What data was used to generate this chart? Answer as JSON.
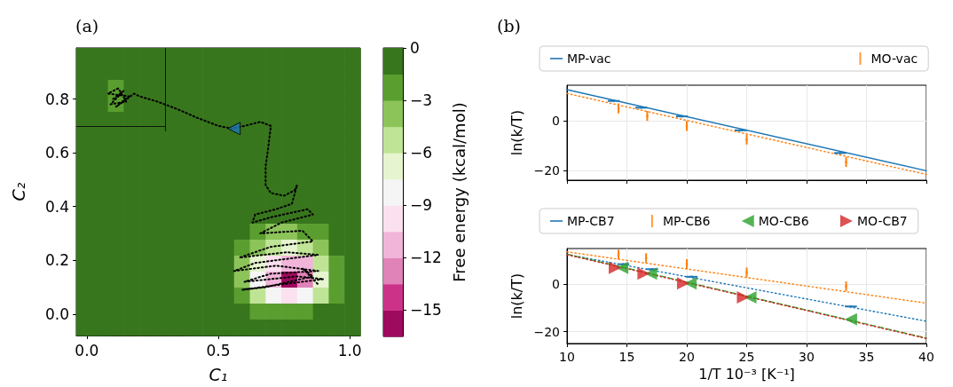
{
  "chart_data": [
    {
      "type": "heatmap",
      "title": "(a)",
      "xlabel": "C₁",
      "ylabel": "C₂",
      "clabel": "Free energy (kcal/mol)",
      "cells": [
        [
          0,
          0,
          0,
          0,
          0,
          0,
          0,
          0,
          0,
          0,
          0,
          0,
          0,
          0,
          0,
          0,
          0,
          0
        ],
        [
          0,
          0,
          0,
          0,
          0,
          0,
          0,
          0,
          0,
          0,
          0,
          0,
          0,
          0,
          0,
          0,
          0,
          0
        ],
        [
          0,
          0,
          -2,
          0,
          0,
          0,
          0,
          0,
          0,
          0,
          0,
          0,
          0,
          0,
          0,
          0,
          0,
          0
        ],
        [
          0,
          0,
          -2,
          0,
          0,
          0,
          0,
          0,
          0,
          0,
          0,
          0,
          0,
          0,
          0,
          0,
          0,
          0
        ],
        [
          0,
          0,
          0,
          0,
          0,
          0,
          0,
          0,
          0,
          0,
          0,
          0,
          0,
          0,
          0,
          0,
          0,
          0
        ],
        [
          0,
          0,
          0,
          0,
          0,
          0,
          0,
          0,
          0,
          0,
          0,
          0,
          0,
          0,
          0,
          0,
          0,
          0
        ],
        [
          0,
          0,
          0,
          0,
          0,
          0,
          0,
          0,
          0,
          0,
          0,
          0,
          0,
          0,
          0,
          0,
          0,
          0
        ],
        [
          0,
          0,
          0,
          0,
          0,
          0,
          0,
          0,
          0,
          0,
          0,
          0,
          0,
          0,
          0,
          0,
          0,
          0
        ],
        [
          0,
          0,
          0,
          0,
          0,
          0,
          0,
          0,
          0,
          0,
          0,
          0,
          0,
          0,
          0,
          0,
          0,
          0
        ],
        [
          0,
          0,
          0,
          0,
          0,
          0,
          0,
          0,
          0,
          0,
          0,
          0,
          0,
          0,
          0,
          0,
          0,
          0
        ],
        [
          0,
          0,
          0,
          0,
          0,
          0,
          0,
          0,
          0,
          0,
          0,
          0,
          0,
          0,
          0,
          0,
          0,
          0
        ],
        [
          0,
          0,
          0,
          0,
          0,
          0,
          0,
          0,
          0,
          0,
          0,
          -2,
          -3.5,
          -3.5,
          -2,
          -2,
          0,
          0
        ],
        [
          0,
          0,
          0,
          0,
          0,
          0,
          0,
          0,
          0,
          0,
          -2,
          -3.5,
          -5,
          -6.5,
          -5,
          -3.5,
          0,
          0
        ],
        [
          0,
          0,
          0,
          0,
          0,
          0,
          0,
          0,
          0,
          0,
          -3.5,
          -6.5,
          -9.5,
          -11,
          -11,
          -5,
          -2,
          0
        ],
        [
          0,
          0,
          0,
          0,
          0,
          0,
          0,
          0,
          0,
          0,
          -3.5,
          -8,
          -11,
          -16,
          -13,
          -6.5,
          -2,
          0
        ],
        [
          0,
          0,
          0,
          0,
          0,
          0,
          0,
          0,
          0,
          0,
          -2,
          -5,
          -8,
          -9.5,
          -8,
          -5,
          -2,
          0
        ],
        [
          0,
          0,
          0,
          0,
          0,
          0,
          0,
          0,
          0,
          0,
          0,
          -2,
          -2,
          -2,
          -2,
          0,
          0,
          0
        ],
        [
          0,
          0,
          0,
          0,
          0,
          0,
          0,
          0,
          0,
          0,
          0,
          0,
          0,
          0,
          0,
          0,
          0,
          0
        ]
      ],
      "colors": [
        "#9e0a5e",
        "#cc3388",
        "#e083b8",
        "#f0b5d9",
        "#fbe0ef",
        "#f5f5f5",
        "#e6f5d0",
        "#c0e496",
        "#8cc45a",
        "#5a9e30",
        "#38761d"
      ],
      "clim": [
        -16.5,
        0
      ],
      "cticks": [
        {
          "value": 0,
          "label": "0"
        },
        {
          "value": -3,
          "label": "−3"
        },
        {
          "value": -6,
          "label": "−6"
        },
        {
          "value": -9,
          "label": "−9"
        },
        {
          "value": -12,
          "label": "−12"
        },
        {
          "value": -15,
          "label": "−15"
        }
      ],
      "xlim": [
        -0.04,
        1.04
      ],
      "xticks": [
        {
          "value": 0,
          "label": "0.0"
        },
        {
          "value": 0.5,
          "label": "0.5"
        },
        {
          "value": 1,
          "label": "1.0"
        }
      ],
      "ylim": [
        -0.08,
        0.99
      ],
      "yticks": [
        {
          "value": 0,
          "label": "0.0"
        },
        {
          "value": 0.2,
          "label": "0.2"
        },
        {
          "value": 0.4,
          "label": "0.4"
        },
        {
          "value": 0.6,
          "label": "0.6"
        },
        {
          "value": 0.8,
          "label": "0.8"
        }
      ],
      "ref_lines": [
        {
          "axis": "x",
          "value": 0.3,
          "color": "#000000"
        },
        {
          "axis": "y",
          "value": 0.7,
          "color": "#000000"
        }
      ],
      "series": [
        {
          "type": "line",
          "color": "#000000",
          "marker": "none",
          "line_style": "dotted",
          "x": [
            0.1,
            0.14,
            0.09,
            0.15,
            0.12,
            0.08,
            0.16,
            0.11,
            0.18,
            0.2,
            0.27,
            0.35,
            0.42,
            0.5,
            0.55,
            0.6,
            0.66,
            0.7,
            0.69,
            0.68,
            0.68,
            0.7,
            0.75,
            0.79,
            0.8,
            0.78,
            0.72,
            0.64,
            0.63,
            0.7,
            0.84,
            0.86,
            0.74,
            0.66,
            0.82,
            0.86,
            0.7,
            0.58,
            0.76,
            0.88,
            0.64,
            0.56,
            0.72,
            0.88,
            0.7,
            0.6,
            0.8,
            0.9,
            0.74,
            0.59,
            0.68,
            0.86,
            0.82,
            0.88
          ],
          "values": [
            0.8,
            0.83,
            0.78,
            0.79,
            0.84,
            0.82,
            0.81,
            0.77,
            0.82,
            0.81,
            0.79,
            0.76,
            0.73,
            0.7,
            0.69,
            0.7,
            0.715,
            0.7,
            0.62,
            0.55,
            0.48,
            0.45,
            0.44,
            0.46,
            0.48,
            0.41,
            0.39,
            0.37,
            0.34,
            0.36,
            0.39,
            0.37,
            0.34,
            0.3,
            0.31,
            0.27,
            0.25,
            0.21,
            0.23,
            0.22,
            0.19,
            0.16,
            0.18,
            0.16,
            0.15,
            0.12,
            0.14,
            0.13,
            0.11,
            0.09,
            0.1,
            0.14,
            0.17,
            0.11
          ]
        },
        {
          "type": "scatter",
          "color": "#1f77b4",
          "marker": "triangle-left",
          "x": [
            0.56
          ],
          "values": [
            0.69
          ]
        }
      ]
    },
    {
      "type": "scatter",
      "title": "(b)",
      "ylabel": "ln(k/T)",
      "legend": "top",
      "grid": true,
      "tick_labels": "y",
      "xlim": [
        10,
        40
      ],
      "xticks": [
        10,
        15,
        20,
        25,
        30,
        35,
        40
      ],
      "ylim": [
        -23.8,
        14.3
      ],
      "yticks": [
        {
          "value": -20,
          "label": "−20"
        },
        0
      ],
      "series": [
        {
          "name": "MP-vac",
          "color": "#1f77b4",
          "marker": "square",
          "x": [
            13.9,
            16.2,
            19.6,
            24.5,
            32.8
          ],
          "values": [
            8,
            5.3,
            1.8,
            -3.8,
            -12.9
          ],
          "xerrors": [
            0.5,
            0.5,
            0.5,
            0.5,
            0.5
          ]
        },
        {
          "name": "MO-vac",
          "color": "#ff7f0e",
          "marker": "square",
          "x": [
            14.3,
            16.7,
            20,
            25,
            33.3
          ],
          "values": [
            5,
            2,
            -2,
            -7.5,
            -16.5
          ],
          "errors": [
            2,
            2,
            2,
            2,
            2
          ]
        },
        {
          "type": "line",
          "color": "#1f77b4",
          "marker": "none",
          "line_style": "solid",
          "x": [
            10,
            40
          ],
          "values": [
            12.5,
            -20
          ]
        },
        {
          "type": "line",
          "color": "#ff7f0e",
          "marker": "none",
          "line_style": "dotted",
          "x": [
            10,
            40
          ],
          "values": [
            11,
            -21.5
          ]
        }
      ]
    },
    {
      "type": "scatter",
      "xlabel": "1/T 10⁻³ [K⁻¹]",
      "ylabel": "ln(k/T)",
      "legend": "top",
      "grid": true,
      "xlim": [
        10,
        40
      ],
      "xticks": [
        10,
        15,
        20,
        25,
        30,
        35,
        40
      ],
      "ylim": [
        -25,
        15
      ],
      "yticks": [
        {
          "value": -20,
          "label": "−20"
        },
        0
      ],
      "series": [
        {
          "name": "MP-CB7",
          "color": "#1f77b4",
          "marker": "square",
          "x": [
            14.7,
            17.1,
            20.4,
            33.7
          ],
          "values": [
            8.4,
            6.3,
            3.1,
            -9.4
          ],
          "xerrors": [
            0.5,
            0.5,
            0.5,
            0.5
          ]
        },
        {
          "name": "MP-CB6",
          "color": "#ff7f0e",
          "marker": "square",
          "x": [
            14.3,
            16.6,
            20,
            25,
            33.3
          ],
          "values": [
            12.5,
            11,
            8.5,
            5,
            -0.9
          ],
          "errors": [
            2,
            2,
            2,
            2,
            2
          ]
        },
        {
          "name": "MO-CB6",
          "color": "#2ca02c",
          "marker": "triangle-left",
          "x": [
            14.6,
            17,
            20.3,
            25.3,
            33.7
          ],
          "values": [
            6.9,
            4.4,
            0.3,
            -5.6,
            -14.8
          ]
        },
        {
          "name": "MO-CB7",
          "color": "#d62728",
          "marker": "triangle-right",
          "x": [
            14,
            16.4,
            19.7,
            24.7
          ],
          "values": [
            6.9,
            4.4,
            0.3,
            -5.6
          ]
        },
        {
          "type": "line",
          "color": "#1f77b4",
          "marker": "none",
          "line_style": "dotted",
          "x": [
            10,
            40
          ],
          "values": [
            12.5,
            -15.6
          ]
        },
        {
          "type": "line",
          "color": "#ff7f0e",
          "marker": "none",
          "line_style": "dotted",
          "x": [
            10,
            40
          ],
          "values": [
            13.6,
            -8
          ]
        },
        {
          "type": "line",
          "color": "#2ca02c",
          "marker": "none",
          "line_style": "dashed",
          "x": [
            10,
            40
          ],
          "values": [
            12.6,
            -22.7
          ]
        },
        {
          "type": "line",
          "color": "#d62728",
          "marker": "none",
          "line_style": "dotted",
          "x": [
            10,
            40
          ],
          "values": [
            12.4,
            -22.9
          ]
        }
      ]
    }
  ]
}
